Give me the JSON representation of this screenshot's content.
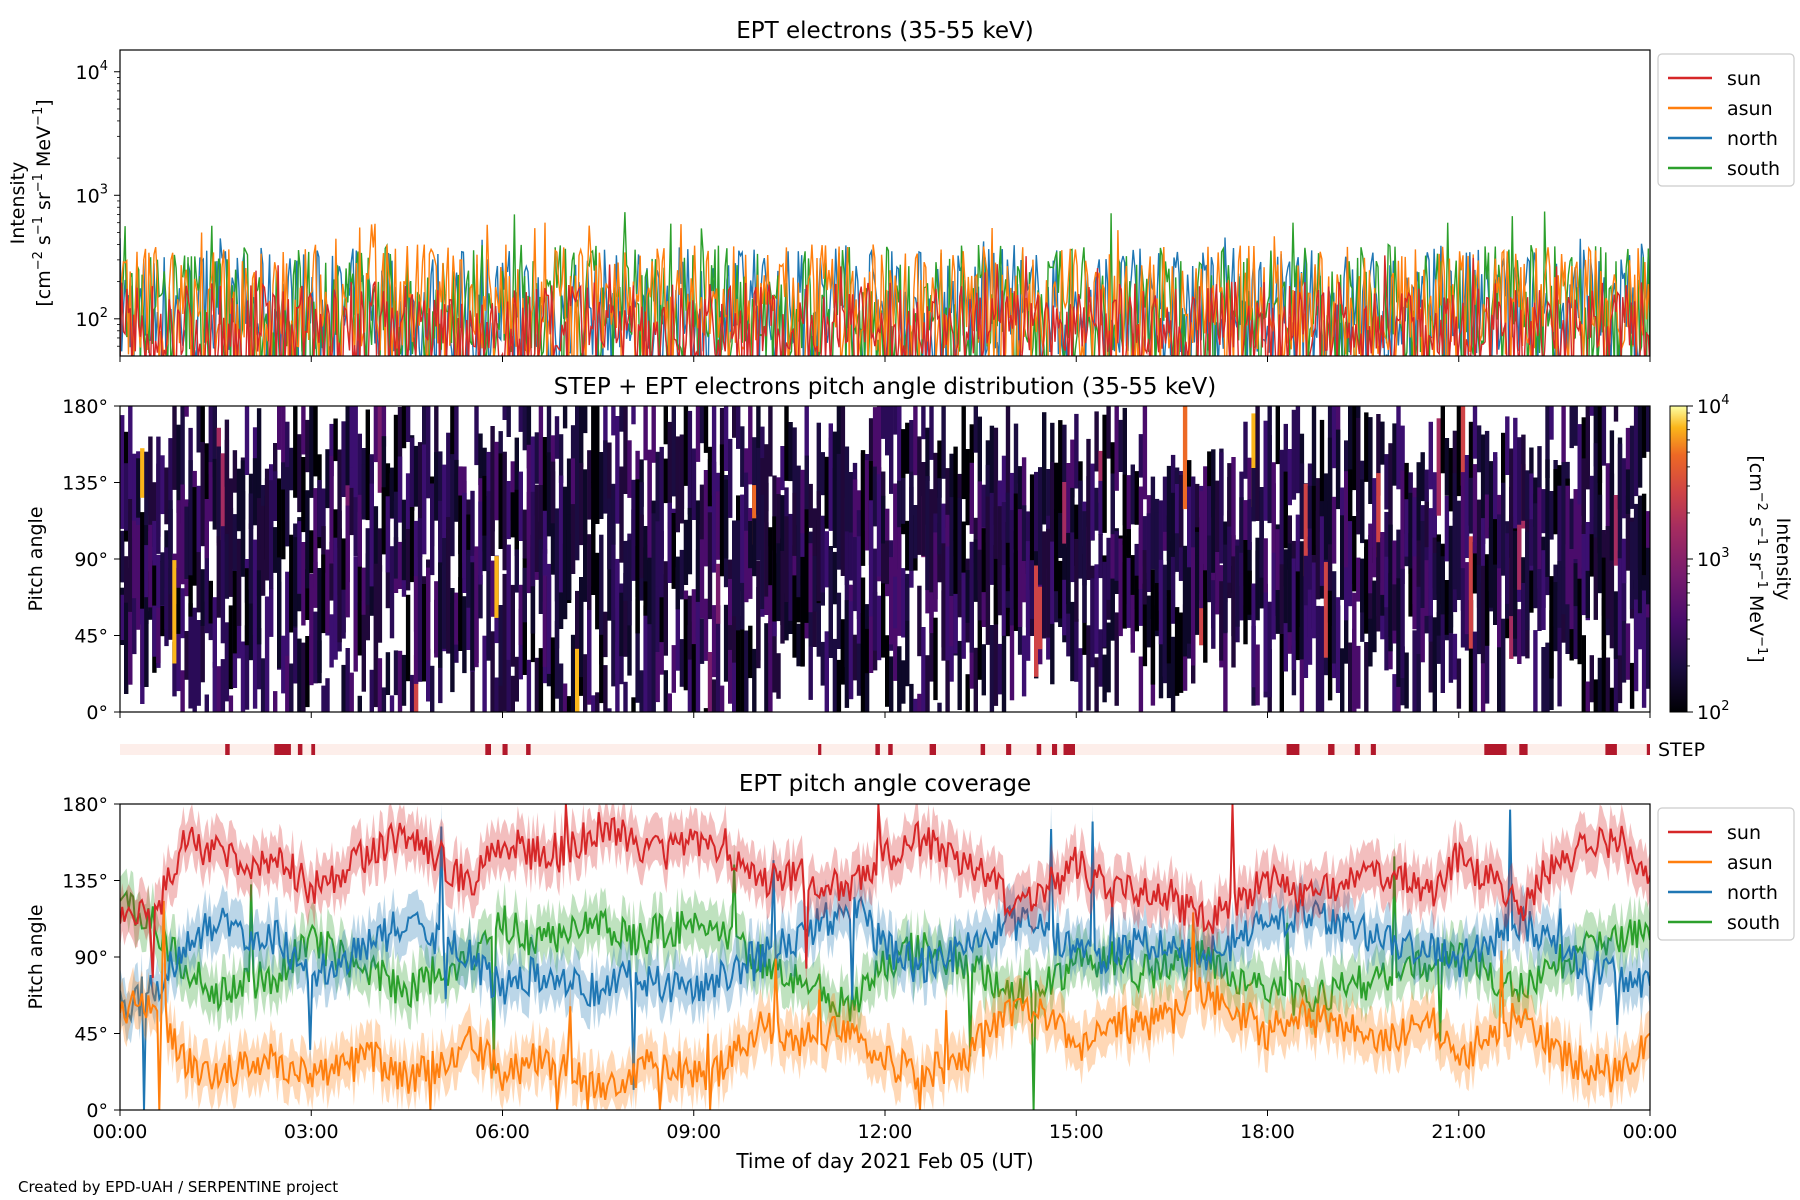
{
  "figure": {
    "footer": "Created by EPD-UAH / SERPENTINE project",
    "xlabel": "Time of day 2021 Feb 05 (UT)",
    "xticks": [
      "00:00",
      "03:00",
      "06:00",
      "09:00",
      "12:00",
      "15:00",
      "18:00",
      "21:00",
      "00:00"
    ],
    "colors": {
      "sun": "#d62728",
      "asun": "#ff7f0e",
      "north": "#1f77b4",
      "south": "#2ca02c",
      "step_bg": "#fdeeea",
      "step_bar": "#b2182b"
    }
  },
  "chart_data": [
    {
      "type": "line",
      "title": "EPT electrons (35-55 keV)",
      "ylabel": "Intensity",
      "yunit": "[cm^-2 s^-1 sr^-1 MeV^-1]",
      "yscale": "log",
      "ylim": [
        50,
        15000
      ],
      "yticks": [
        "10^2",
        "10^3",
        "10^4"
      ],
      "xlim": [
        0,
        24
      ],
      "legend": [
        "sun",
        "asun",
        "north",
        "south"
      ],
      "legend_loc": "outside-right",
      "series": [
        {
          "name": "sun",
          "typical": [
            60,
            200
          ],
          "peak": 330
        },
        {
          "name": "asun",
          "typical": [
            60,
            400
          ],
          "peak": 630
        },
        {
          "name": "north",
          "typical": [
            60,
            380
          ],
          "peak": 460
        },
        {
          "name": "south",
          "typical": [
            60,
            400
          ],
          "peak": 750
        }
      ]
    },
    {
      "type": "heatmap",
      "title": "STEP + EPT electrons pitch angle distribution (35-55 keV)",
      "ylabel": "Pitch angle",
      "ylim": [
        0,
        180
      ],
      "yticks": [
        "0°",
        "45°",
        "90°",
        "135°",
        "180°"
      ],
      "xlim": [
        0,
        24
      ],
      "colorbar": {
        "label": "Intensity",
        "unit": "[cm^-2 s^-1 sr^-1 MeV^-1]",
        "scale": "log",
        "range": [
          100,
          10000
        ],
        "ticks": [
          "10^2",
          "10^3",
          "10^4"
        ],
        "cmap": "inferno"
      }
    },
    {
      "type": "bar",
      "label": "STEP",
      "intervals_hours": [
        [
          1.65,
          1.72
        ],
        [
          2.42,
          2.68
        ],
        [
          2.79,
          2.86
        ],
        [
          3.0,
          3.06
        ],
        [
          5.73,
          5.82
        ],
        [
          6.0,
          6.08
        ],
        [
          6.37,
          6.44
        ],
        [
          10.95,
          11.0
        ],
        [
          11.85,
          11.92
        ],
        [
          12.05,
          12.12
        ],
        [
          12.7,
          12.8
        ],
        [
          13.5,
          13.57
        ],
        [
          13.9,
          13.98
        ],
        [
          14.38,
          14.45
        ],
        [
          14.62,
          14.7
        ],
        [
          14.8,
          14.98
        ],
        [
          18.3,
          18.5
        ],
        [
          18.95,
          19.05
        ],
        [
          19.37,
          19.45
        ],
        [
          19.62,
          19.7
        ],
        [
          21.4,
          21.75
        ],
        [
          21.95,
          22.08
        ],
        [
          23.3,
          23.48
        ],
        [
          23.95,
          24.0
        ]
      ]
    },
    {
      "type": "line",
      "title": "EPT pitch angle coverage",
      "ylabel": "Pitch angle",
      "ylim": [
        0,
        180
      ],
      "yticks": [
        "0°",
        "45°",
        "90°",
        "135°",
        "180°"
      ],
      "xlim": [
        0,
        24
      ],
      "legend": [
        "sun",
        "asun",
        "north",
        "south"
      ],
      "legend_loc": "outside-right",
      "series": [
        {
          "name": "sun",
          "x": [
            0,
            0.5,
            1,
            1.5,
            2,
            2.5,
            3,
            3.5,
            4,
            4.5,
            5,
            5.5,
            6,
            6.5,
            7,
            7.5,
            8,
            8.5,
            9,
            9.5,
            10,
            10.5,
            11,
            11.5,
            12,
            12.5,
            13,
            13.5,
            14,
            14.5,
            15,
            15.5,
            16,
            16.5,
            17,
            17.5,
            18,
            18.5,
            19,
            19.5,
            20,
            20.5,
            21,
            21.5,
            22,
            22.5,
            23,
            23.5,
            24
          ],
          "y": [
            120,
            110,
            160,
            150,
            145,
            150,
            130,
            140,
            155,
            160,
            150,
            130,
            160,
            150,
            155,
            165,
            160,
            150,
            160,
            155,
            130,
            140,
            135,
            130,
            150,
            160,
            150,
            140,
            120,
            130,
            145,
            130,
            130,
            125,
            110,
            120,
            135,
            125,
            130,
            135,
            140,
            125,
            150,
            135,
            120,
            145,
            155,
            160,
            135
          ]
        },
        {
          "name": "asun",
          "x": [
            0,
            0.5,
            1,
            1.5,
            2,
            2.5,
            3,
            3.5,
            4,
            4.5,
            5,
            5.5,
            6,
            6.5,
            7,
            7.5,
            8,
            8.5,
            9,
            9.5,
            10,
            10.5,
            11,
            11.5,
            12,
            12.5,
            13,
            13.5,
            14,
            14.5,
            15,
            15.5,
            16,
            16.5,
            17,
            17.5,
            18,
            18.5,
            19,
            19.5,
            20,
            20.5,
            21,
            21.5,
            22,
            22.5,
            23,
            23.5,
            24
          ],
          "y": [
            60,
            65,
            30,
            20,
            25,
            30,
            20,
            25,
            30,
            20,
            25,
            40,
            20,
            30,
            25,
            15,
            20,
            30,
            20,
            25,
            50,
            40,
            45,
            50,
            30,
            20,
            25,
            40,
            60,
            55,
            35,
            50,
            50,
            55,
            70,
            60,
            45,
            55,
            50,
            45,
            40,
            55,
            30,
            45,
            60,
            35,
            25,
            20,
            40
          ]
        },
        {
          "name": "north",
          "x": [
            0,
            0.5,
            1,
            1.5,
            2,
            2.5,
            3,
            3.5,
            4,
            4.5,
            5,
            5.5,
            6,
            6.5,
            7,
            7.5,
            8,
            8.5,
            9,
            9.5,
            10,
            10.5,
            11,
            11.5,
            12,
            12.5,
            13,
            13.5,
            14,
            14.5,
            15,
            15.5,
            16,
            16.5,
            17,
            17.5,
            18,
            18.5,
            19,
            19.5,
            20,
            20.5,
            21,
            21.5,
            22,
            22.5,
            23,
            23.5,
            24
          ],
          "y": [
            60,
            70,
            95,
            110,
            105,
            100,
            80,
            90,
            100,
            110,
            100,
            90,
            70,
            80,
            75,
            70,
            80,
            75,
            70,
            80,
            90,
            100,
            110,
            120,
            95,
            85,
            90,
            100,
            110,
            105,
            95,
            90,
            100,
            95,
            90,
            100,
            110,
            115,
            110,
            105,
            100,
            95,
            90,
            100,
            110,
            95,
            85,
            80,
            70
          ]
        },
        {
          "name": "south",
          "x": [
            0,
            0.5,
            1,
            1.5,
            2,
            2.5,
            3,
            3.5,
            4,
            4.5,
            5,
            5.5,
            6,
            6.5,
            7,
            7.5,
            8,
            8.5,
            9,
            9.5,
            10,
            10.5,
            11,
            11.5,
            12,
            12.5,
            13,
            13.5,
            14,
            14.5,
            15,
            15.5,
            16,
            16.5,
            17,
            17.5,
            18,
            18.5,
            19,
            19.5,
            20,
            20.5,
            21,
            21.5,
            22,
            22.5,
            23,
            23.5,
            24
          ],
          "y": [
            120,
            110,
            85,
            70,
            75,
            80,
            100,
            90,
            80,
            70,
            80,
            90,
            110,
            100,
            105,
            110,
            100,
            105,
            110,
            100,
            90,
            80,
            70,
            60,
            85,
            95,
            90,
            80,
            70,
            75,
            85,
            90,
            80,
            85,
            90,
            80,
            70,
            65,
            70,
            75,
            80,
            85,
            90,
            80,
            70,
            85,
            95,
            100,
            110
          ]
        }
      ]
    }
  ]
}
